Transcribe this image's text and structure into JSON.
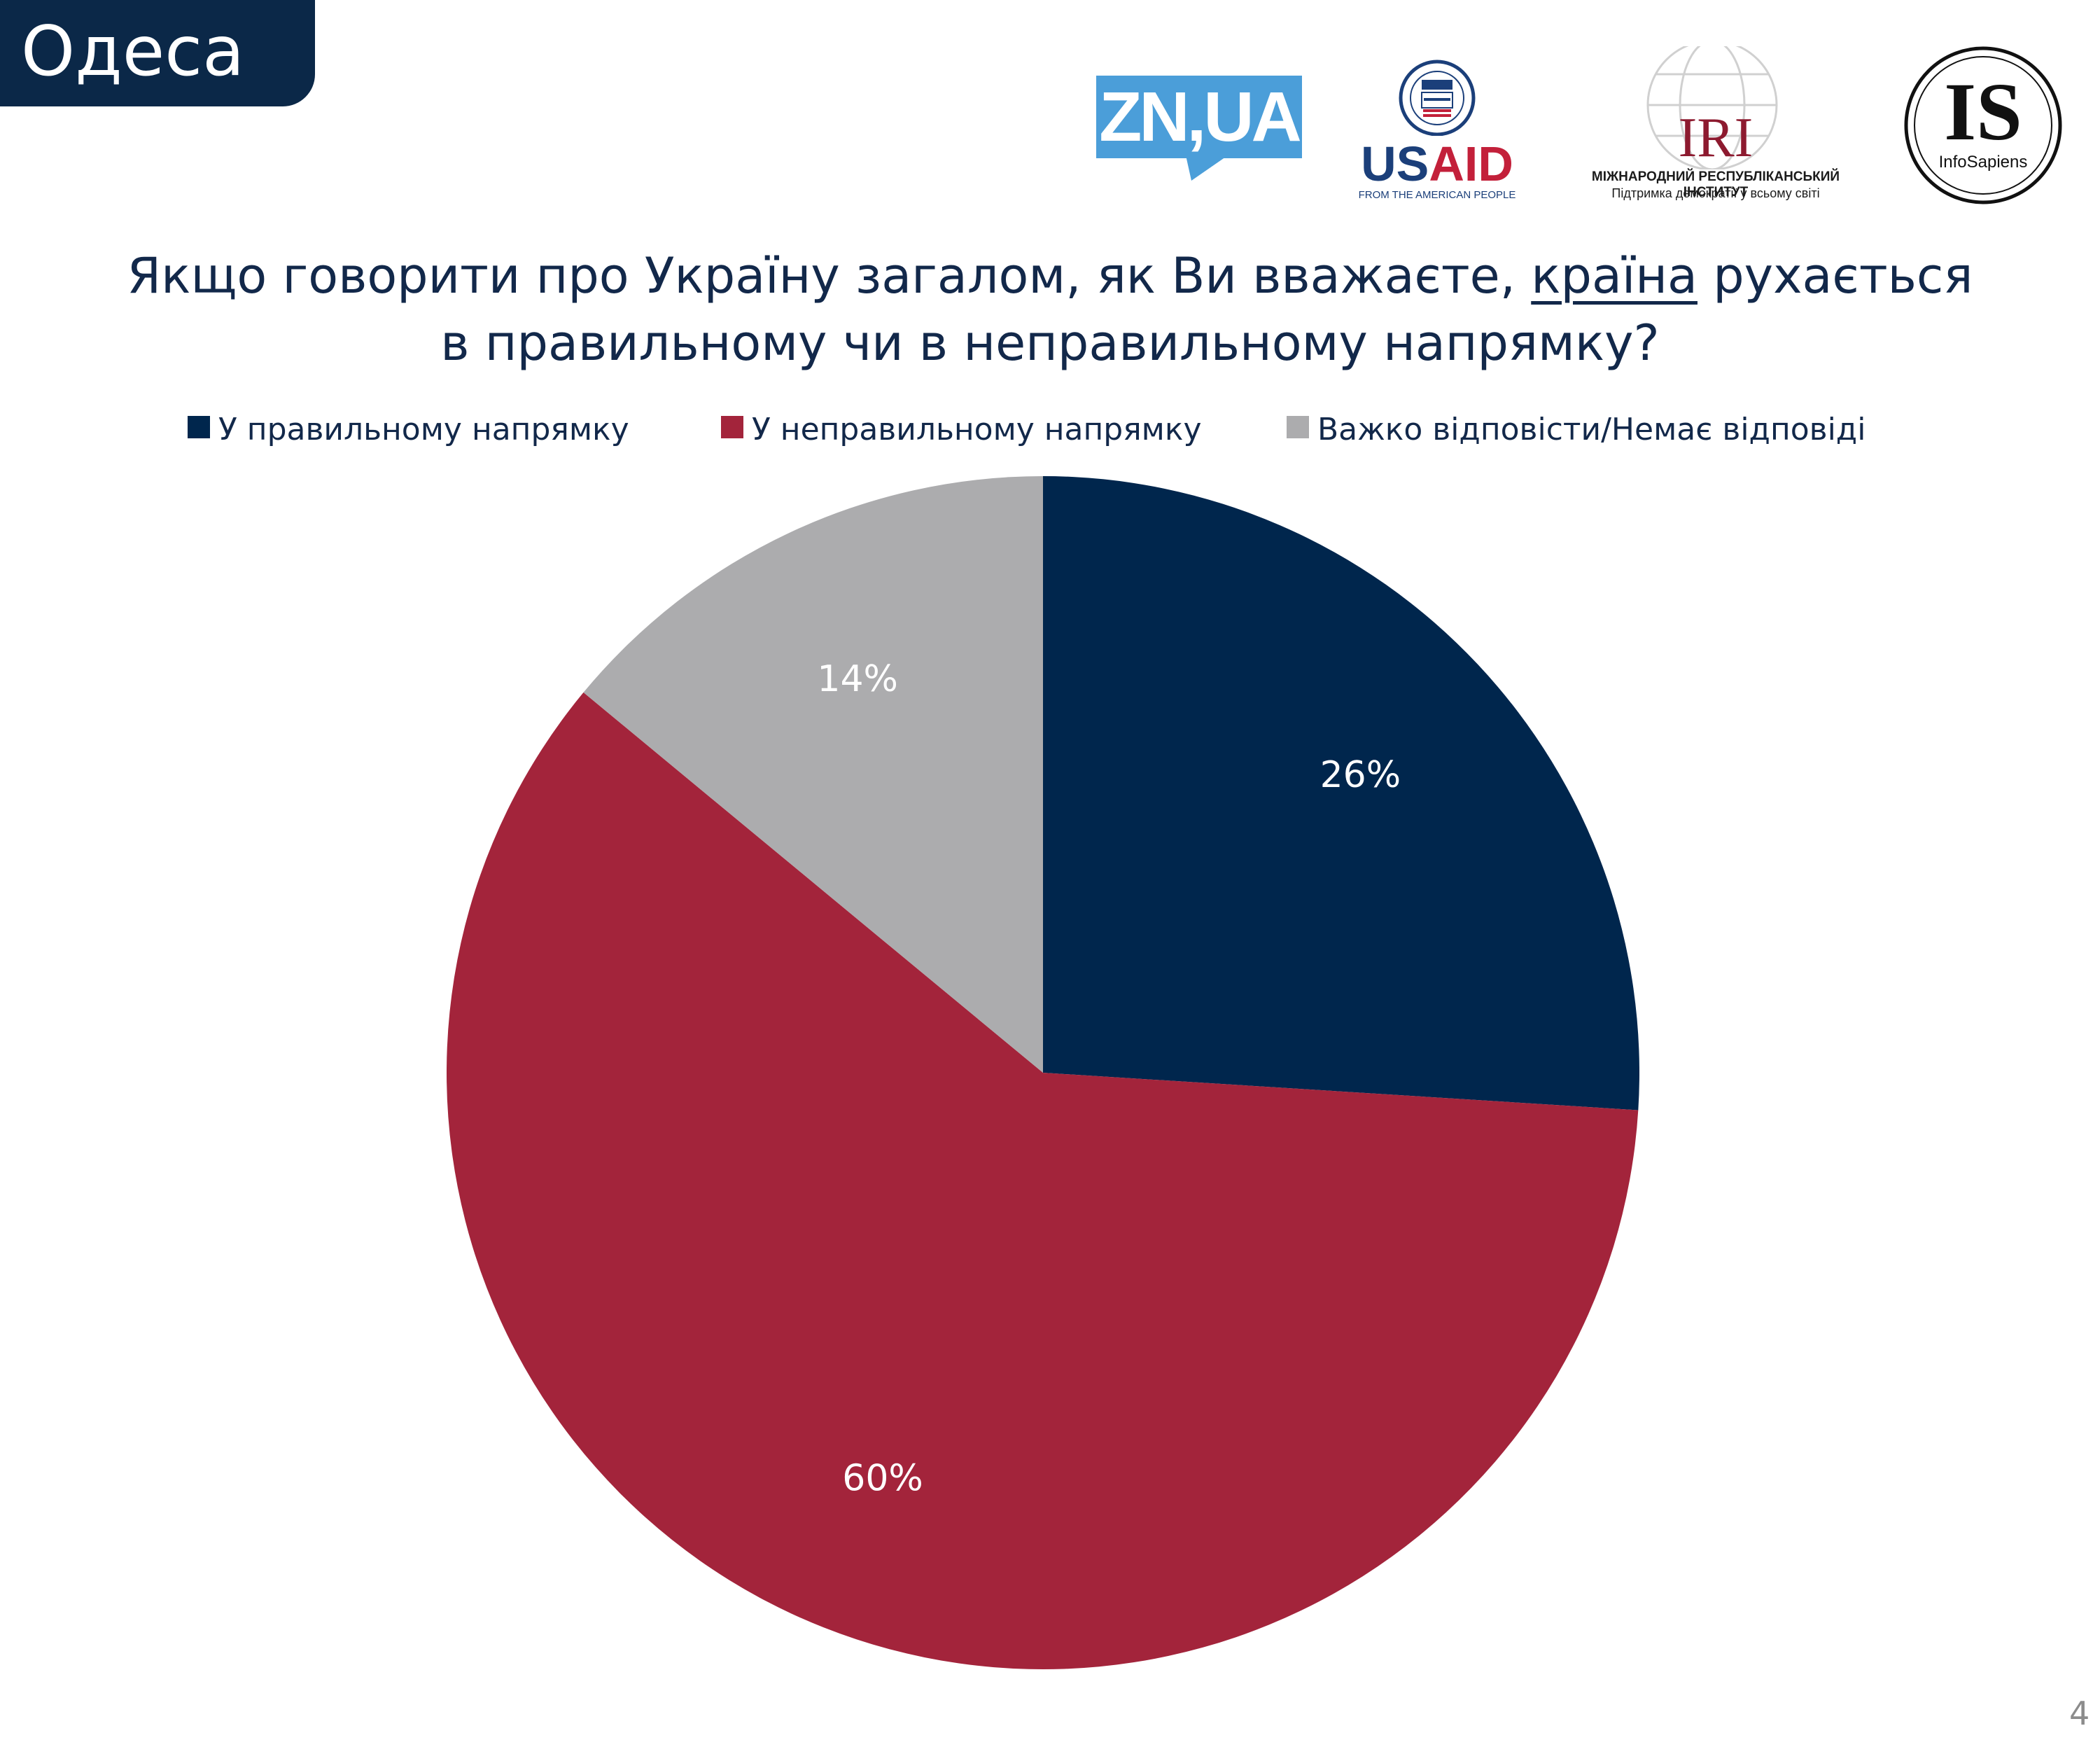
{
  "header": {
    "city": "Одеса"
  },
  "logos": {
    "zn": "ZN,UA",
    "usaid": {
      "name_part1": "US",
      "name_part2": "AID",
      "tagline": "FROM THE AMERICAN PEOPLE"
    },
    "iri": {
      "mark": "IRI",
      "name": "МІЖНАРОДНИЙ РЕСПУБЛІКАНСЬКИЙ ІНСТИТУТ",
      "slogan": "Підтримка демократії у всьому світі"
    },
    "infosapiens": {
      "monogram": "IS",
      "name": "InfoSapiens"
    }
  },
  "chart_data": {
    "type": "pie",
    "title": {
      "line1_before": "Якщо говорити про Україну загалом, як Ви вважаєте, ",
      "line1_underlined": "країна",
      "line1_after": " рухається",
      "line2": "в правильному чи в неправильному напрямку?"
    },
    "legend_position": "top",
    "categories": [
      "У правильному напрямку",
      "У неправильному напрямку",
      "Важко відповісти/Немає відповіді"
    ],
    "values": [
      26,
      60,
      14
    ],
    "data_labels": [
      "26%",
      "60%",
      "14%"
    ],
    "colors": [
      "#00264d",
      "#a3243b",
      "#acacae"
    ]
  },
  "footer": {
    "page_number": "4"
  }
}
